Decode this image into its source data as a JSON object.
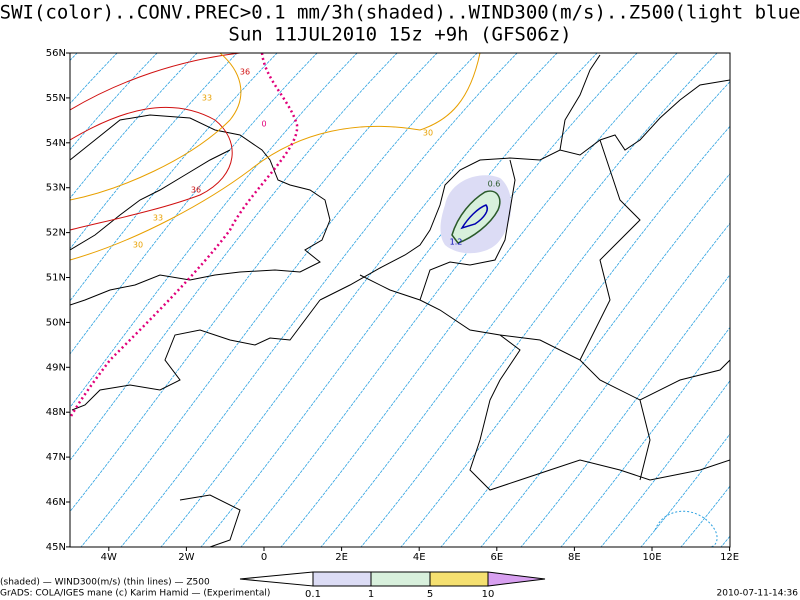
{
  "header": {
    "title_line1": "*SWI(color)..CONV.PREC>0.1 mm/3h(shaded)..WIND300(m/s)..Z500(light blue)",
    "title_line2": "Sun 11JUL2010 15z  +9h (GFS06z)"
  },
  "map": {
    "lat_labels": [
      "56N",
      "55N",
      "54N",
      "53N",
      "52N",
      "51N",
      "50N",
      "49N",
      "48N",
      "47N",
      "46N",
      "45N"
    ],
    "lon_labels": [
      "4W",
      "2W",
      "0",
      "2E",
      "4E",
      "6E",
      "8E",
      "10E",
      "12E"
    ],
    "contour_labels": [
      {
        "text": "36",
        "color": "#d01010"
      },
      {
        "text": "33",
        "color": "#e8a000"
      },
      {
        "text": "0",
        "color": "#e0007a"
      },
      {
        "text": "30",
        "color": "#e8a000"
      },
      {
        "text": "36",
        "color": "#d01010"
      },
      {
        "text": "33",
        "color": "#e8a000"
      },
      {
        "text": "30",
        "color": "#e8a000"
      },
      {
        "text": "0.6",
        "color": "#2a5a2a"
      },
      {
        "text": "1.2",
        "color": "#0000b0"
      }
    ]
  },
  "colorbar": {
    "labels": [
      "0.1",
      "1",
      "5",
      "10"
    ]
  },
  "footer": {
    "line1": "(shaded) — WIND300(m/s) (thin lines) — Z500",
    "line2": "GrADS: COLA/IGES   mane (c) Karim Hamid — (Experimental)",
    "timestamp": "2010-07-11-14:36"
  }
}
